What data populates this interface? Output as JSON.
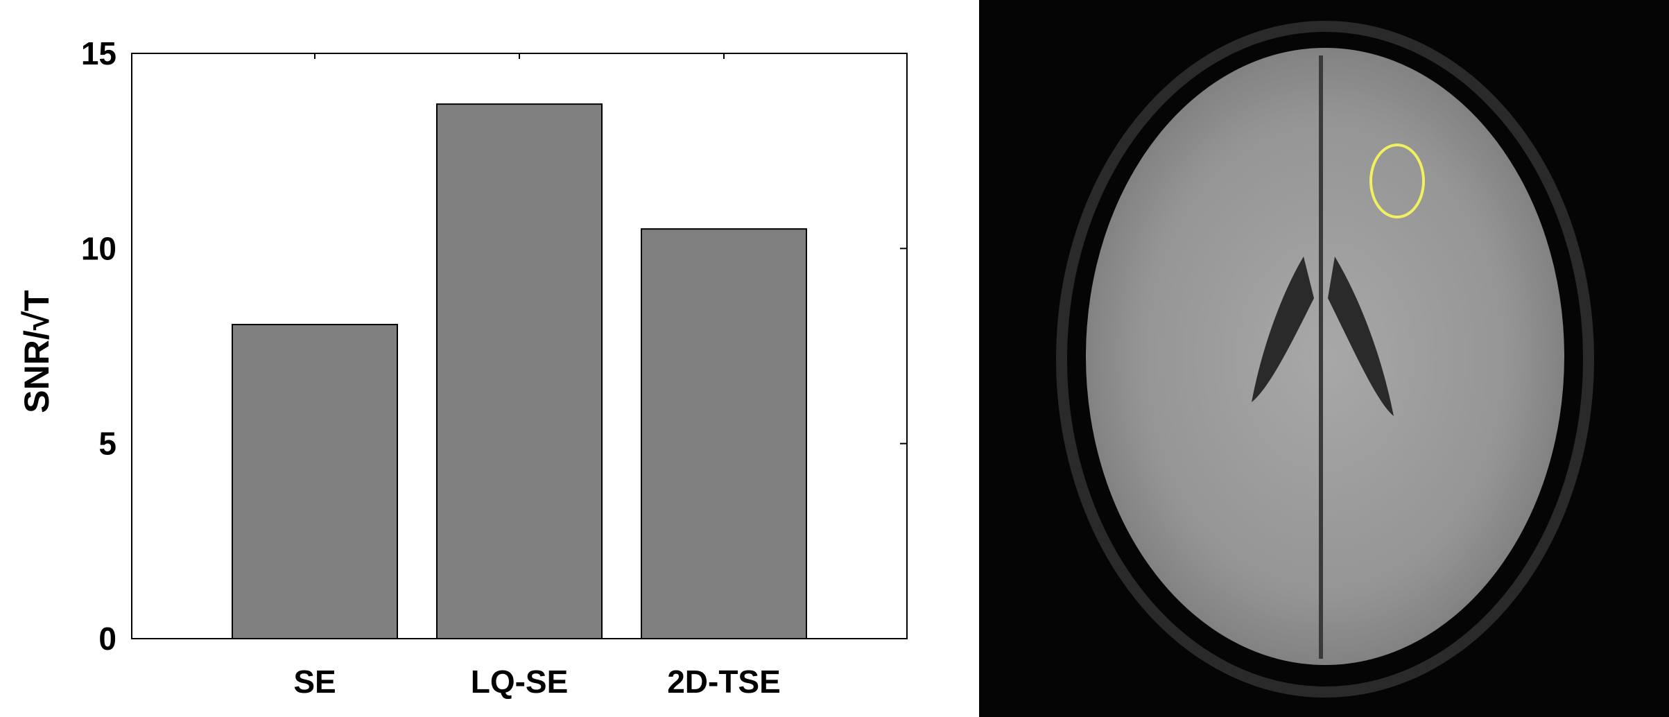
{
  "chart_data": {
    "type": "bar",
    "categories": [
      "SE",
      "LQ-SE",
      "2D-TSE"
    ],
    "values": [
      8.05,
      13.7,
      10.5
    ],
    "xlabel": "",
    "ylabel": "SNR/√T",
    "ylim": [
      0,
      15
    ],
    "yticks": [
      "0",
      "5",
      "10",
      "15"
    ],
    "grid": false,
    "bar_color": "#808080"
  },
  "image_panel": {
    "description_icon": "brain-mri-axial-image",
    "roi_color": "#f0f060"
  }
}
